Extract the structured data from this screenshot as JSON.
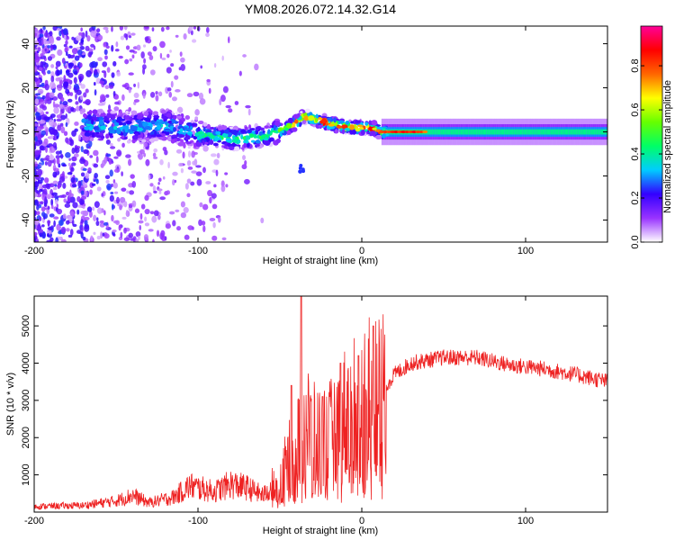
{
  "title": "YM08.2026.072.14.32.G14",
  "chart_data": [
    {
      "type": "heatmap",
      "name": "spectrogram",
      "xlabel": "Height of straight line (km)",
      "ylabel": "Frequency (Hz)",
      "xlim": [
        -200,
        150
      ],
      "ylim": [
        -50,
        48
      ],
      "xticks": [
        -200,
        -100,
        0,
        100
      ],
      "yticks": [
        -40,
        -20,
        0,
        20,
        40
      ],
      "colorbar": {
        "label": "Normalized spectral amplitude",
        "range": [
          0,
          0.98
        ],
        "ticks": [
          "0.0",
          "0.2",
          "0.4",
          "0.6",
          "0.8"
        ],
        "colors": [
          "#ffffff",
          "#9933ff",
          "#3300ff",
          "#00ccff",
          "#00ff66",
          "#66ff00",
          "#ffff00",
          "#ff6600",
          "#ff0000",
          "#ff0099"
        ]
      },
      "ridge_frequency": [
        {
          "x": -160,
          "y": 3
        },
        {
          "x": -140,
          "y": 2
        },
        {
          "x": -120,
          "y": 3
        },
        {
          "x": -100,
          "y": -1
        },
        {
          "x": -80,
          "y": -3
        },
        {
          "x": -60,
          "y": -2
        },
        {
          "x": -45,
          "y": 2
        },
        {
          "x": -35,
          "y": 7
        },
        {
          "x": -25,
          "y": 5
        },
        {
          "x": -15,
          "y": 3
        },
        {
          "x": -5,
          "y": 2
        },
        {
          "x": 5,
          "y": 2
        },
        {
          "x": 12,
          "y": 0
        },
        {
          "x": 40,
          "y": 0
        },
        {
          "x": 100,
          "y": 0
        },
        {
          "x": 150,
          "y": 0
        }
      ],
      "secondary_feature": {
        "x": -37,
        "y": -17
      }
    },
    {
      "type": "line",
      "name": "snr",
      "xlabel": "Height of straight line (km)",
      "ylabel": "SNR (10 * v/v)",
      "xlim": [
        -200,
        150
      ],
      "ylim": [
        0,
        5800
      ],
      "xticks": [
        -200,
        -100,
        0,
        100
      ],
      "yticks": [
        1000,
        2000,
        3000,
        4000,
        5000
      ],
      "series_color": "#ee2222",
      "envelope": [
        {
          "x": -200,
          "y": 150
        },
        {
          "x": -170,
          "y": 180
        },
        {
          "x": -150,
          "y": 300
        },
        {
          "x": -140,
          "y": 450
        },
        {
          "x": -130,
          "y": 250
        },
        {
          "x": -115,
          "y": 400
        },
        {
          "x": -105,
          "y": 700
        },
        {
          "x": -90,
          "y": 550
        },
        {
          "x": -80,
          "y": 750
        },
        {
          "x": -70,
          "y": 650
        },
        {
          "x": -60,
          "y": 450
        },
        {
          "x": -50,
          "y": 900
        },
        {
          "x": -40,
          "y": 1800
        },
        {
          "x": -35,
          "y": 2400
        },
        {
          "x": -30,
          "y": 2000
        },
        {
          "x": -20,
          "y": 2000
        },
        {
          "x": -10,
          "y": 2600
        },
        {
          "x": 0,
          "y": 2900
        },
        {
          "x": 10,
          "y": 3100
        },
        {
          "x": 20,
          "y": 3700
        },
        {
          "x": 30,
          "y": 4000
        },
        {
          "x": 50,
          "y": 4150
        },
        {
          "x": 70,
          "y": 4150
        },
        {
          "x": 90,
          "y": 3950
        },
        {
          "x": 110,
          "y": 3850
        },
        {
          "x": 130,
          "y": 3700
        },
        {
          "x": 150,
          "y": 3500
        }
      ],
      "peaks": [
        {
          "x": -37,
          "y": 5800
        },
        {
          "x": 7,
          "y": 5000
        },
        {
          "x": -2,
          "y": 4200
        },
        {
          "x": -13,
          "y": 4000
        },
        {
          "x": -24,
          "y": 3100
        },
        {
          "x": -43,
          "y": 3400
        }
      ]
    }
  ]
}
